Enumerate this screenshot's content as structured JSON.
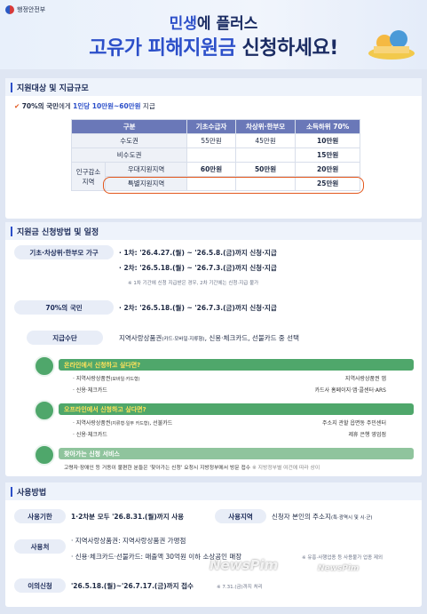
{
  "header": {
    "ministry": "행정안전부",
    "title_prefix": "민생",
    "title_rest": "에 플러스",
    "title2_a": "고유가 피해지원금",
    "title2_b": " 신청하세요!"
  },
  "s1": {
    "heading": "지원대상 및 지급규모",
    "summary_a": "70%의 국민",
    "summary_b": "에게 ",
    "summary_c": "1인당 10만원~60만원",
    "summary_d": " 지급",
    "cols": [
      "구분",
      "기초수급자",
      "차상위·한부모",
      "소득하위 70%"
    ],
    "r1": [
      "수도권",
      "55만원",
      "45만원",
      "10만원"
    ],
    "r2": [
      "비수도권",
      "",
      "",
      "15만원"
    ],
    "group": "인구감소\n지역",
    "r3": [
      "우대지원지역",
      "60만원",
      "50만원",
      "20만원"
    ],
    "r4": [
      "특별지원지역",
      "",
      "",
      "25만원"
    ]
  },
  "s2": {
    "heading": "지원금 신청방법 및 일정",
    "g1": "기초·차상위·한부모 가구",
    "g1a": "· 1차: '26.4.27.(월) ~ '26.5.8.(금)까지 신청·지급",
    "g1b": "· 2차: '26.5.18.(월) ~ '26.7.3.(금)까지 신청·지급",
    "g1note": "※ 1차 기간에 신청 지급받은 경우, 2차 기간에는 신청·지급 불가",
    "g2": "70%의 국민",
    "g2a": "· 2차: '26.5.18.(월) ~ '26.7.3.(금)까지 신청·지급",
    "g3": "지급수단",
    "g3a": "지역사랑상품권",
    "g3small": "(카드·모바일·지류형)",
    "g3b": ", 신용·체크카드, 선불카드 중 선택",
    "on": "온라인에서 신청하고 싶다면?",
    "on_a1": "· 지역사랑상품권",
    "on_a1s": "(모바일·카드형)",
    "on_a2": "지역사랑상품권 앱",
    "on_b1": "· 신용·체크카드",
    "on_b2": "카드사 홈페이지·앱·콜센터·ARS",
    "off": "오프라인에서 신청하고 싶다면?",
    "off_a1": "· 지역사랑상품권",
    "off_a1s": "(지류형·일부 카드형)",
    "off_a1c": ", 선불카드",
    "off_a2": "주소지 관할 읍면동 주민센터",
    "off_b1": "· 신용·체크카드",
    "off_b2": "제휴 은행 영업점",
    "visit": "찾아가는 신청 서비스",
    "visit_a": "고령자·장애인 등 거동이 불편한 분들은 '찾아가는 신청' 요청시 지방정부에서 방문 접수",
    "visit_s": "※ 지방정부별 여건에 따라 상이"
  },
  "s3": {
    "heading": "사용방법",
    "k1": "사용기한",
    "v1": "1·2차분 모두 '26.8.31.(월)까지 사용",
    "k2": "사용지역",
    "v2": "신청자 본인의 주소지",
    "v2s": "(특·광역시 및 시·군)",
    "k3": "사용처",
    "v3a": "· 지역사랑상품권: 지역사랑상품권 가맹점",
    "v3b": "· 신용·체크카드·선불카드: 매출액 30억원 이하 소상공인 매장",
    "v3s": "※ 유흥·사행업종 등 사용불가 업종 제외",
    "k4": "이의신청",
    "v4": "'26.5.18.(월)~'26.7.17.(금)까지 접수",
    "v4s": "※ 7.31.(금)까지 처리"
  },
  "watermark": "NewsPim"
}
